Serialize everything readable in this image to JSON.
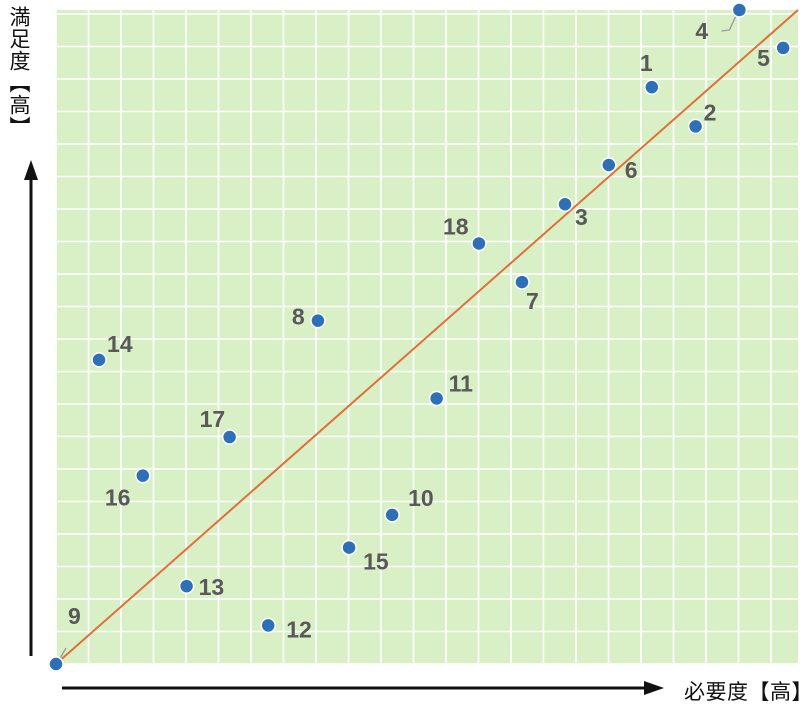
{
  "axes": {
    "x_title": "必要度【高】",
    "y_title": "満足度【高】"
  },
  "colors": {
    "plot_bg": "#d9efc6",
    "grid": "#ffffff",
    "point": "#2f6fb5",
    "point_edge": "#ffffff",
    "trendline": "#e0703a",
    "label": "#595959",
    "axis_arrow": "#111111"
  },
  "chart_data": {
    "type": "scatter",
    "title": "",
    "xlabel": "必要度【高】",
    "ylabel": "満足度【高】",
    "xlim": [
      0,
      100
    ],
    "ylim": [
      0,
      100
    ],
    "grid": true,
    "trendline": {
      "from": [
        0,
        0
      ],
      "to": [
        100,
        100
      ]
    },
    "points": [
      {
        "label": "1",
        "x": 80.3,
        "y": 88.2
      },
      {
        "label": "2",
        "x": 86.2,
        "y": 82.2
      },
      {
        "label": "3",
        "x": 68.6,
        "y": 70.3
      },
      {
        "label": "4",
        "x": 92.1,
        "y": 100.0
      },
      {
        "label": "5",
        "x": 98.0,
        "y": 94.2
      },
      {
        "label": "6",
        "x": 74.5,
        "y": 76.3
      },
      {
        "label": "7",
        "x": 62.8,
        "y": 58.4
      },
      {
        "label": "8",
        "x": 35.3,
        "y": 52.5
      },
      {
        "label": "9",
        "x": 0.0,
        "y": 0.0
      },
      {
        "label": "10",
        "x": 45.3,
        "y": 22.8
      },
      {
        "label": "11",
        "x": 51.3,
        "y": 40.6
      },
      {
        "label": "12",
        "x": 28.6,
        "y": 5.9
      },
      {
        "label": "13",
        "x": 17.6,
        "y": 11.9
      },
      {
        "label": "14",
        "x": 5.8,
        "y": 46.5
      },
      {
        "label": "15",
        "x": 39.5,
        "y": 17.8
      },
      {
        "label": "16",
        "x": 11.7,
        "y": 28.8
      },
      {
        "label": "17",
        "x": 23.4,
        "y": 34.7
      },
      {
        "label": "18",
        "x": 57.0,
        "y": 64.3
      }
    ]
  }
}
